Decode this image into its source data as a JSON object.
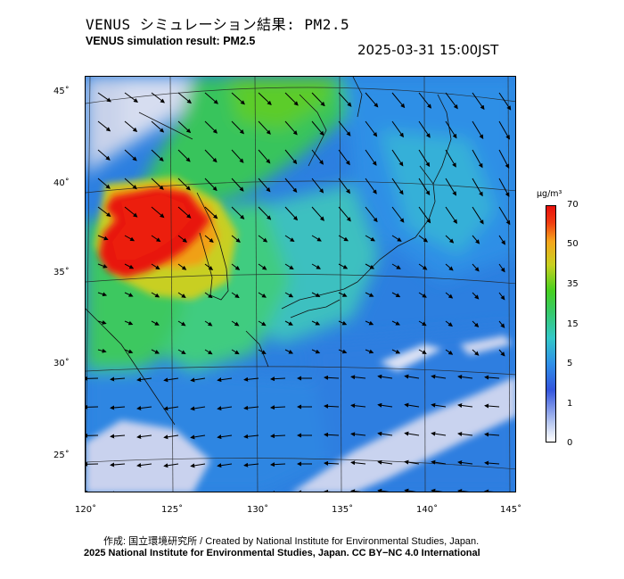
{
  "header": {
    "title_jp": "VENUS シミュレーション結果: PM2.5",
    "title_en": "VENUS simulation result: PM2.5",
    "timestamp": "2025-03-31 15:00JST"
  },
  "map": {
    "lat_labels": [
      "45˚",
      "40˚",
      "35˚",
      "30˚",
      "25˚"
    ],
    "lon_labels": [
      "120˚",
      "125˚",
      "130˚",
      "135˚",
      "140˚",
      "145˚"
    ]
  },
  "colorbar": {
    "unit": "μg/m³",
    "ticks": [
      "70",
      "50",
      "35",
      "15",
      "5",
      "1",
      "0"
    ],
    "colors": [
      "#ffffff",
      "#3355dd",
      "#33c8c8",
      "#46d020",
      "#f5a51c",
      "#e8100c"
    ]
  },
  "footer": {
    "credit_jp": "作成: 国立環境研究所 / Created by National Institute for Environmental Studies, Japan.",
    "copyright": "2025 National Institute for Environmental Studies, Japan. CC BY−NC 4.0 International"
  }
}
